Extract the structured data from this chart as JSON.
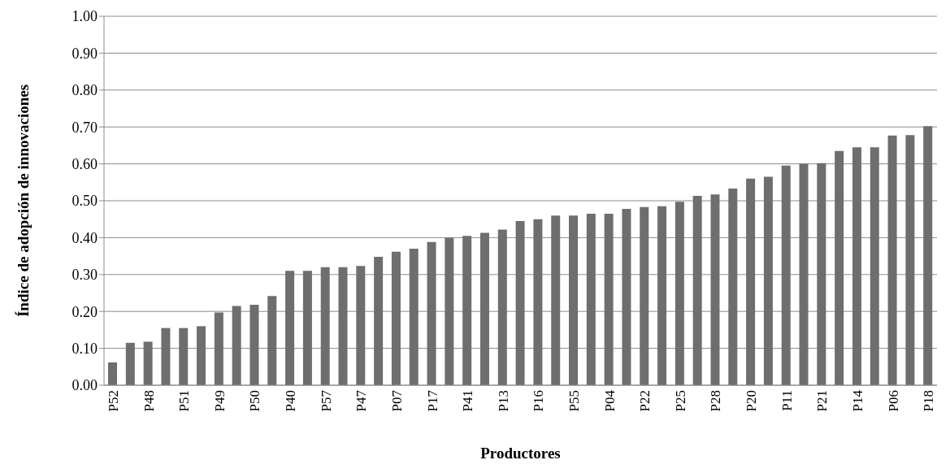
{
  "chart_data": {
    "type": "bar",
    "xlabel": "Productores",
    "ylabel": "Índice de adopción de innovaciones",
    "categories": [
      "P52",
      null,
      "P48",
      null,
      "P51",
      null,
      "P49",
      null,
      "P50",
      null,
      "P40",
      null,
      "P57",
      null,
      "P47",
      null,
      "P07",
      null,
      "P17",
      null,
      "P41",
      null,
      "P13",
      null,
      "P16",
      null,
      "P55",
      null,
      "P04",
      null,
      "P22",
      null,
      "P25",
      null,
      "P28",
      null,
      "P20",
      null,
      "P11",
      null,
      "P21",
      null,
      "P14",
      null,
      "P06",
      null,
      "P18"
    ],
    "values": [
      0.062,
      0.115,
      0.118,
      0.155,
      0.155,
      0.16,
      0.197,
      0.215,
      0.218,
      0.242,
      0.31,
      0.31,
      0.32,
      0.32,
      0.323,
      0.348,
      0.362,
      0.37,
      0.388,
      0.4,
      0.405,
      0.413,
      0.422,
      0.445,
      0.45,
      0.46,
      0.46,
      0.465,
      0.465,
      0.478,
      0.483,
      0.485,
      0.497,
      0.513,
      0.517,
      0.533,
      0.56,
      0.565,
      0.595,
      0.6,
      0.602,
      0.635,
      0.645,
      0.645,
      0.677,
      0.678,
      0.702
    ],
    "color": "#6e6e6e",
    "ylim": [
      0,
      1
    ],
    "yticks": [
      {
        "value": 0,
        "label": "0.00"
      },
      {
        "value": 0.1,
        "label": "0.10"
      },
      {
        "value": 0.2,
        "label": "0.20"
      },
      {
        "value": 0.3,
        "label": "0.30"
      },
      {
        "value": 0.4,
        "label": "0.40"
      },
      {
        "value": 0.5,
        "label": "0.50"
      },
      {
        "value": 0.6,
        "label": "0.60"
      },
      {
        "value": 0.7,
        "label": "0.70"
      },
      {
        "value": 0.8,
        "label": "0.80"
      },
      {
        "value": 0.9,
        "label": "0.90"
      },
      {
        "value": 1,
        "label": "1.00"
      }
    ],
    "grid": "y"
  }
}
